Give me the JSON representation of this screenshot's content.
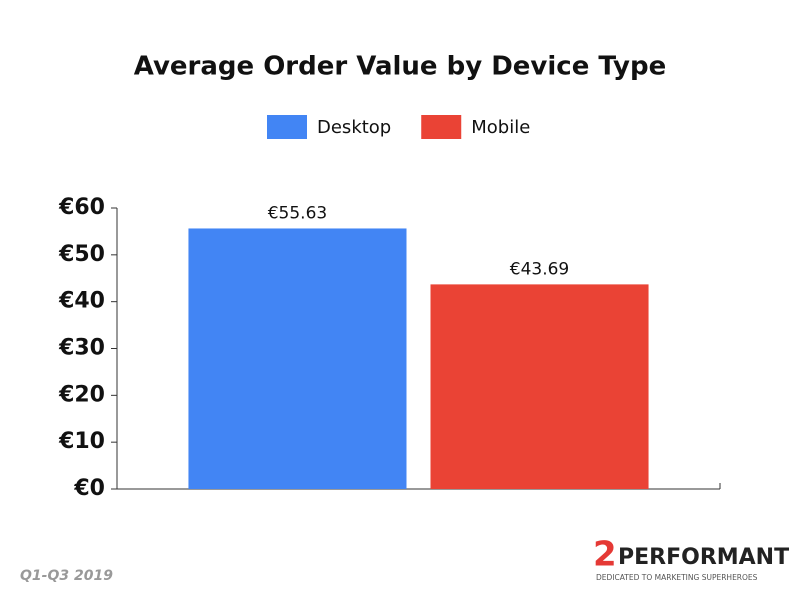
{
  "chart_data": {
    "type": "bar",
    "title": "Average Order Value by Device Type",
    "categories": [
      null
    ],
    "series": [
      {
        "name": "Desktop",
        "color": "#4285f4",
        "values": [
          55.63
        ],
        "value_labels": [
          "€55.63"
        ]
      },
      {
        "name": "Mobile",
        "color": "#ea4335",
        "values": [
          43.69
        ],
        "value_labels": [
          "€43.69"
        ]
      }
    ],
    "ylim": [
      0,
      60
    ],
    "yticks": [
      {
        "value": 0,
        "label": "€0"
      },
      {
        "value": 10,
        "label": "€10"
      },
      {
        "value": 20,
        "label": "€20"
      },
      {
        "value": 30,
        "label": "€30"
      },
      {
        "value": 40,
        "label": "€40"
      },
      {
        "value": 50,
        "label": "€50"
      },
      {
        "value": 60,
        "label": "€60"
      }
    ],
    "grid": false,
    "legend": "top",
    "footnote": "Q1-Q3 2019",
    "logo": {
      "mark": "2",
      "name": "PERFORMANT",
      "tagline": "DEDICATED TO MARKETING SUPERHEROES"
    }
  }
}
